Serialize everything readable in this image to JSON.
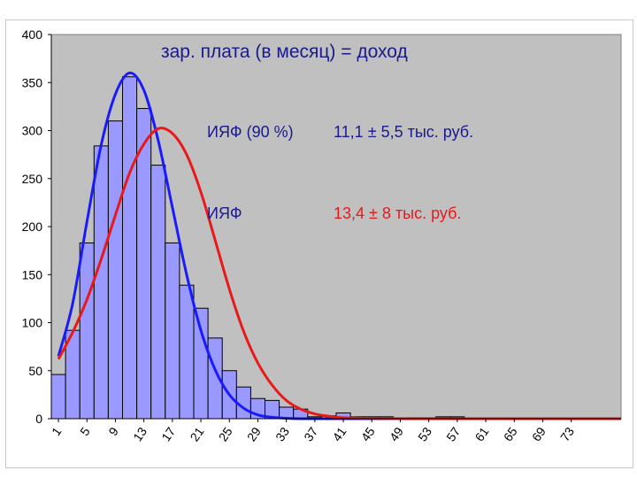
{
  "chart_data": {
    "type": "bar",
    "title": "зар. плата (в месяц) = доход",
    "xlabel": "",
    "ylabel": "",
    "ylim": [
      0,
      400
    ],
    "yticks": [
      0,
      50,
      100,
      150,
      200,
      250,
      300,
      350,
      400
    ],
    "xlim": [
      0,
      80
    ],
    "xtick_labels": [
      "1",
      "5",
      "9",
      "13",
      "17",
      "21",
      "25",
      "29",
      "33",
      "37",
      "41",
      "45",
      "49",
      "53",
      "57",
      "61",
      "65",
      "69",
      "73"
    ],
    "bin_width": 2,
    "bins_x": [
      0,
      2,
      4,
      6,
      8,
      10,
      12,
      14,
      16,
      18,
      20,
      22,
      24,
      26,
      28,
      30,
      32,
      34,
      36,
      38,
      40,
      42,
      44,
      46,
      48,
      50,
      52,
      54,
      56,
      58
    ],
    "values": [
      46,
      92,
      183,
      284,
      310,
      356,
      323,
      264,
      183,
      139,
      115,
      84,
      50,
      33,
      21,
      19,
      12,
      10,
      2,
      3,
      6,
      2,
      2,
      2,
      0,
      1,
      1,
      2,
      2,
      0
    ],
    "series": [
      {
        "name": "ИЯФ (90 %)",
        "color": "#1a1aff",
        "stat": "11,1 ± 5,5 тыс. руб.",
        "x": [
          1,
          3,
          5,
          7,
          9,
          11,
          13,
          15,
          17,
          19,
          21,
          23,
          25,
          27,
          29,
          31,
          33,
          35,
          37,
          39,
          41,
          45,
          50,
          60,
          70,
          80
        ],
        "y": [
          65,
          120,
          205,
          285,
          338,
          360,
          342,
          290,
          220,
          150,
          92,
          51,
          25,
          11,
          4,
          1.5,
          0.5,
          0,
          0,
          0,
          0,
          0,
          0,
          0,
          0,
          0
        ]
      },
      {
        "name": "ИЯФ",
        "color": "#e81919",
        "stat": "13,4 ± 8 тыс. руб.",
        "x": [
          1,
          3,
          5,
          7,
          9,
          11,
          13,
          15,
          17,
          19,
          21,
          23,
          25,
          27,
          29,
          31,
          33,
          35,
          37,
          39,
          41,
          45,
          50,
          60,
          70,
          80
        ],
        "y": [
          62,
          90,
          124,
          166,
          212,
          256,
          286,
          302,
          297,
          275,
          236,
          186,
          135,
          91,
          58,
          35,
          19,
          10,
          5,
          2.5,
          1,
          0.3,
          0,
          0,
          0,
          0
        ]
      }
    ],
    "colors": {
      "plot_bg": "#c0c0c0",
      "bar_fill": "#9999ff",
      "bar_stroke": "#000000",
      "grid": "#9a9a9a"
    },
    "grid": false,
    "legend": "inline-text"
  }
}
